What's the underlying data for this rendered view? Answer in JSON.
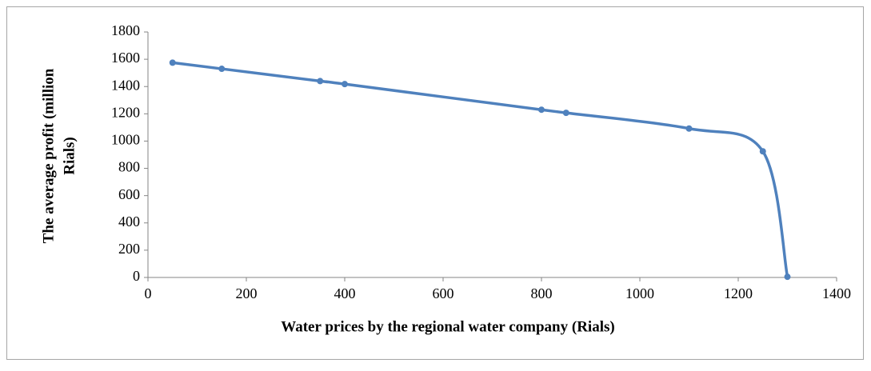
{
  "chart_data": {
    "type": "scatter",
    "x_label": "Water prices by the regional water company  (Rials)",
    "y_label": [
      "The average profit  (million",
      "Rials)"
    ],
    "series": [
      {
        "color": "#4f81bd",
        "x": [
          50,
          150,
          350,
          400,
          800,
          850,
          1100,
          1250,
          1300
        ],
        "values": [
          1575,
          1530,
          1440,
          1418,
          1230,
          1207,
          1092,
          925,
          5
        ]
      }
    ],
    "xlim": [
      0,
      1400
    ],
    "xticks": [
      0,
      200,
      400,
      600,
      800,
      1000,
      1200,
      1400
    ],
    "ylim": [
      0,
      1800
    ],
    "yticks": [
      0,
      200,
      400,
      600,
      800,
      1000,
      1200,
      1400,
      1600,
      1800
    ],
    "smooth": true,
    "grid": false
  }
}
